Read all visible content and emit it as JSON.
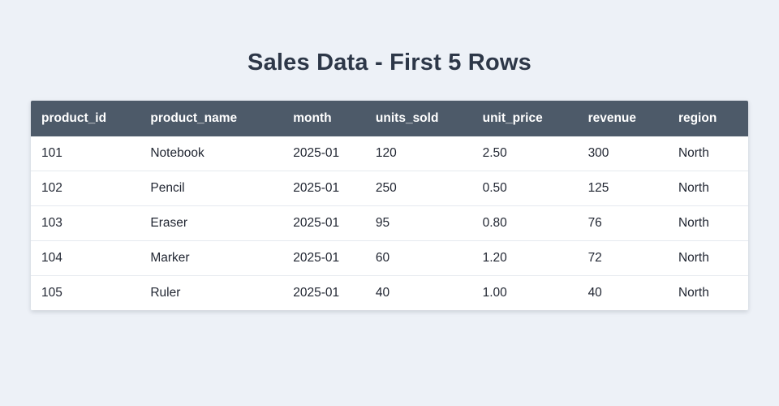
{
  "title": "Sales Data - First 5 Rows",
  "table": {
    "columns": [
      "product_id",
      "product_name",
      "month",
      "units_sold",
      "unit_price",
      "revenue",
      "region"
    ],
    "rows": [
      [
        "101",
        "Notebook",
        "2025-01",
        "120",
        "2.50",
        "300",
        "North"
      ],
      [
        "102",
        "Pencil",
        "2025-01",
        "250",
        "0.50",
        "125",
        "North"
      ],
      [
        "103",
        "Eraser",
        "2025-01",
        "95",
        "0.80",
        "76",
        "North"
      ],
      [
        "104",
        "Marker",
        "2025-01",
        "60",
        "1.20",
        "72",
        "North"
      ],
      [
        "105",
        "Ruler",
        "2025-01",
        "40",
        "1.00",
        "40",
        "North"
      ]
    ]
  },
  "colors": {
    "page_background": "#edf1f7",
    "header_background": "#4d5a69",
    "header_text": "#ffffff",
    "row_background": "#ffffff",
    "row_divider": "#e5e9ef",
    "title_text": "#2d3748",
    "cell_text": "#1f2430"
  }
}
